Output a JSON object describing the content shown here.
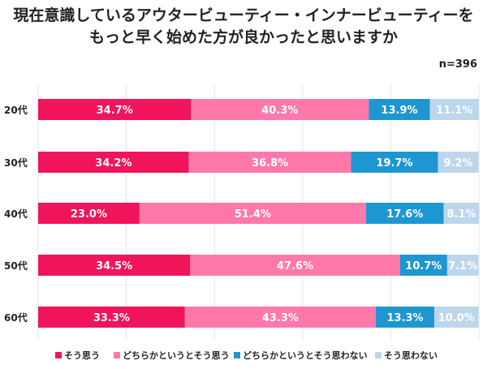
{
  "chart_data": {
    "type": "bar",
    "orientation": "horizontal-stacked-100",
    "title_lines": [
      "現在意識しているアウタービューティー・インナービューティーを",
      "もっと早く始めた方が良かったと思いますか"
    ],
    "note": "n=396",
    "categories": [
      "20代",
      "30代",
      "40代",
      "50代",
      "60代"
    ],
    "xlim": [
      0,
      100
    ],
    "grid": true,
    "legend_position": "bottom",
    "series": [
      {
        "name": "そう思う",
        "color": "#f0145a",
        "values": [
          34.7,
          34.2,
          23.0,
          34.5,
          33.3
        ]
      },
      {
        "name": "どちらかというとそう思う",
        "color": "#ff78aa",
        "values": [
          40.3,
          36.8,
          51.4,
          47.6,
          43.3
        ]
      },
      {
        "name": "どちらかというとそう思わない",
        "color": "#1e96d2",
        "values": [
          13.9,
          19.7,
          17.6,
          10.7,
          13.3
        ]
      },
      {
        "name": "そう思わない",
        "color": "#bcd6ec",
        "values": [
          11.1,
          9.2,
          8.1,
          7.1,
          10.0
        ]
      }
    ]
  }
}
